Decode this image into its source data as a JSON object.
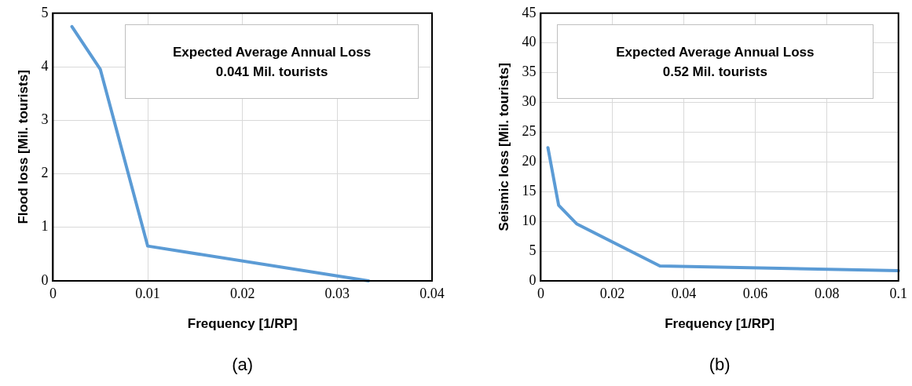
{
  "chart_data": [
    {
      "type": "line",
      "title": "Expected Average Annual Loss",
      "subtitle": "0.041 Mil. tourists",
      "xlabel": "Frequency [1/RP]",
      "ylabel": "Flood loss [Mil. tourists]",
      "annotations": [
        "(a)"
      ],
      "x": [
        0.002,
        0.005,
        0.01,
        0.0333
      ],
      "series": [
        {
          "color": "#5b9bd5",
          "values": [
            4.75,
            3.95,
            0.65,
            0
          ]
        }
      ],
      "xlim": [
        0,
        0.04
      ],
      "xticks": [
        0,
        0.01,
        0.02,
        0.03,
        0.04
      ],
      "ylim": [
        0,
        5
      ],
      "yticks": [
        0,
        1,
        2,
        3,
        4,
        5
      ],
      "grid": true,
      "legend": false,
      "marker": "none",
      "line_style": "solid"
    },
    {
      "type": "line",
      "title": "Expected Average Annual Loss",
      "subtitle": "0.52 Mil. tourists",
      "xlabel": "Frequency [1/RP]",
      "ylabel": "Seismic loss [Mil. tourists]",
      "annotations": [
        "(b)"
      ],
      "x": [
        0.002,
        0.005,
        0.01,
        0.0333,
        0.1
      ],
      "series": [
        {
          "color": "#5b9bd5",
          "values": [
            22.4,
            12.7,
            9.6,
            2.5,
            1.7
          ]
        }
      ],
      "xlim": [
        0,
        0.1
      ],
      "xticks": [
        0,
        0.02,
        0.04,
        0.06,
        0.08,
        0.1
      ],
      "ylim": [
        0,
        45
      ],
      "yticks": [
        0,
        5,
        10,
        15,
        20,
        25,
        30,
        35,
        40,
        45
      ],
      "grid": true,
      "legend": false,
      "marker": "none",
      "line_style": "solid"
    }
  ]
}
